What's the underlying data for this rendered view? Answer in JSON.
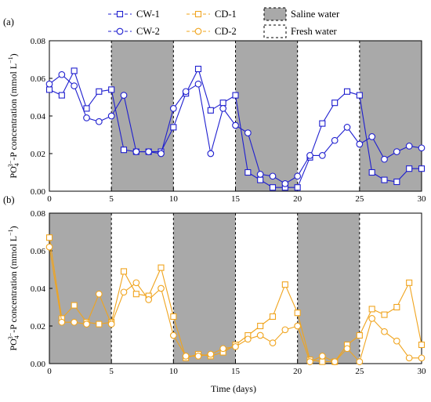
{
  "chart_data": [
    {
      "type": "line",
      "panel_label": "(a)",
      "x": [
        0,
        1,
        2,
        3,
        4,
        5,
        6,
        7,
        8,
        9,
        10,
        11,
        12,
        13,
        14,
        15,
        16,
        17,
        18,
        19,
        20,
        21,
        22,
        23,
        24,
        25,
        26,
        27,
        28,
        29,
        30
      ],
      "series": [
        {
          "name": "CW-1",
          "color": "#1f1fcf",
          "marker": "square",
          "values": [
            0.054,
            0.051,
            0.064,
            0.044,
            0.053,
            0.054,
            0.022,
            0.021,
            0.021,
            0.021,
            0.034,
            0.052,
            0.065,
            0.043,
            0.047,
            0.051,
            0.01,
            0.006,
            0.002,
            0.002,
            0.002,
            0.018,
            0.036,
            0.047,
            0.053,
            0.051,
            0.01,
            0.006,
            0.005,
            0.012,
            0.012
          ]
        },
        {
          "name": "CW-2",
          "color": "#1f1fcf",
          "marker": "circle",
          "values": [
            0.057,
            0.062,
            0.056,
            0.039,
            0.037,
            0.04,
            0.051,
            0.021,
            0.021,
            0.02,
            0.044,
            0.053,
            0.057,
            0.02,
            0.044,
            0.035,
            0.031,
            0.009,
            0.008,
            0.004,
            0.008,
            0.019,
            0.019,
            0.027,
            0.034,
            0.025,
            0.029,
            0.017,
            0.021,
            0.024,
            0.023
          ]
        }
      ],
      "shaded_ranges": [
        [
          5,
          10
        ],
        [
          15,
          20
        ],
        [
          25,
          30
        ]
      ],
      "xlim": [
        0,
        30
      ],
      "ylim": [
        0,
        0.08
      ],
      "xticks": [
        0,
        5,
        10,
        15,
        20,
        25,
        30
      ],
      "yticks": [
        "0.00",
        "0.02",
        "0.04",
        "0.06",
        "0.08"
      ],
      "ylabel": "PO43−-P concentration (mmol L−1)"
    },
    {
      "type": "line",
      "panel_label": "(b)",
      "x": [
        0,
        1,
        2,
        3,
        4,
        5,
        6,
        7,
        8,
        9,
        10,
        11,
        12,
        13,
        14,
        15,
        16,
        17,
        18,
        19,
        20,
        21,
        22,
        23,
        24,
        25,
        26,
        27,
        28,
        29,
        30
      ],
      "series": [
        {
          "name": "CD-1",
          "color": "#f0a41e",
          "marker": "square",
          "values": [
            0.067,
            0.024,
            0.031,
            0.022,
            0.021,
            0.022,
            0.049,
            0.037,
            0.036,
            0.051,
            0.025,
            0.003,
            0.005,
            0.004,
            0.006,
            0.01,
            0.015,
            0.02,
            0.025,
            0.042,
            0.027,
            0.002,
            0.001,
            0.001,
            0.01,
            0.015,
            0.029,
            0.026,
            0.03,
            0.043,
            0.01
          ]
        },
        {
          "name": "CD-2",
          "color": "#f0a41e",
          "marker": "circle",
          "values": [
            0.062,
            0.022,
            0.022,
            0.021,
            0.037,
            0.021,
            0.038,
            0.043,
            0.034,
            0.04,
            0.015,
            0.004,
            0.004,
            0.005,
            0.008,
            0.009,
            0.013,
            0.015,
            0.011,
            0.018,
            0.02,
            0.001,
            0.004,
            0.001,
            0.008,
            0.001,
            0.024,
            0.017,
            0.012,
            0.003,
            0.003
          ]
        }
      ],
      "shaded_ranges": [
        [
          0,
          5
        ],
        [
          10,
          15
        ],
        [
          20,
          25
        ]
      ],
      "xlim": [
        0,
        30
      ],
      "ylim": [
        0,
        0.08
      ],
      "xticks": [
        0,
        5,
        10,
        15,
        20,
        25,
        30
      ],
      "yticks": [
        "0.00",
        "0.02",
        "0.04",
        "0.06",
        "0.08"
      ],
      "xlabel": "Time (days)",
      "ylabel": "PO43−-P concentration (mmol L−1)"
    }
  ],
  "legend": {
    "items": [
      {
        "label": "CW-1",
        "color": "#1f1fcf",
        "marker": "square"
      },
      {
        "label": "CD-1",
        "color": "#f0a41e",
        "marker": "square"
      },
      {
        "label": "Saline water",
        "swatch": "#a9a9a9"
      },
      {
        "label": "CW-2",
        "color": "#1f1fcf",
        "marker": "circle"
      },
      {
        "label": "CD-2",
        "color": "#f0a41e",
        "marker": "circle"
      },
      {
        "label": "Fresh  water",
        "swatch": "#ffffff"
      }
    ]
  },
  "shade_color": "#a9a9a9"
}
